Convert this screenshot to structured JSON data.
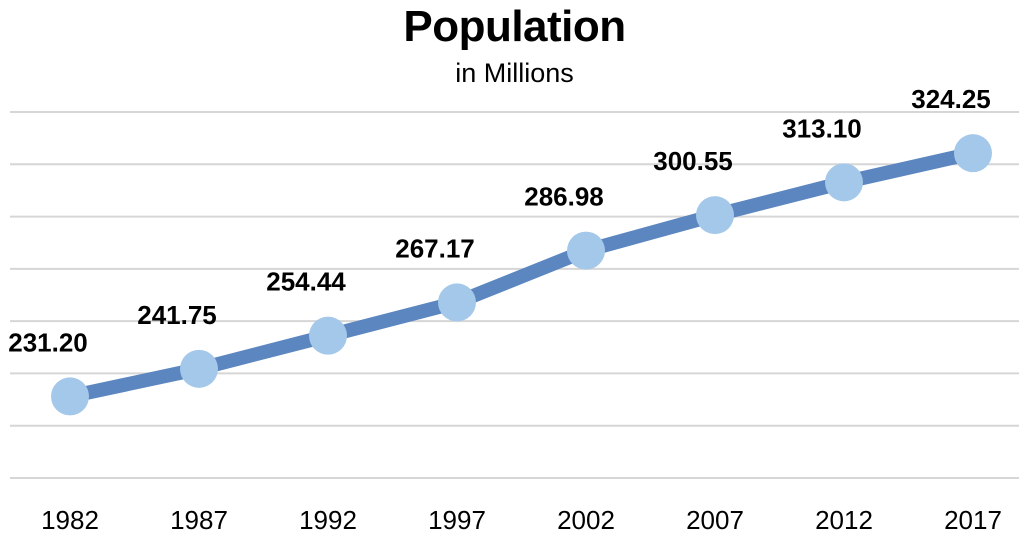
{
  "chart_data": {
    "type": "line",
    "title": "Population",
    "subtitle": "in Millions",
    "xlabel": "",
    "ylabel": "",
    "categories": [
      "1982",
      "1987",
      "1992",
      "1997",
      "2002",
      "2007",
      "2012",
      "2017"
    ],
    "series": [
      {
        "values": [
          231.2,
          241.75,
          254.44,
          267.17,
          286.98,
          300.55,
          313.1,
          324.25
        ],
        "labels": [
          "231.20",
          "241.75",
          "254.44",
          "267.17",
          "286.98",
          "300.55",
          "313.10",
          "324.25"
        ]
      }
    ],
    "ylim": [
      200,
      340
    ],
    "grid": true,
    "legend": "none",
    "colors": {
      "line": "#5b86c0",
      "marker": "#a4c8ea",
      "grid": "#d6d6d6"
    }
  }
}
